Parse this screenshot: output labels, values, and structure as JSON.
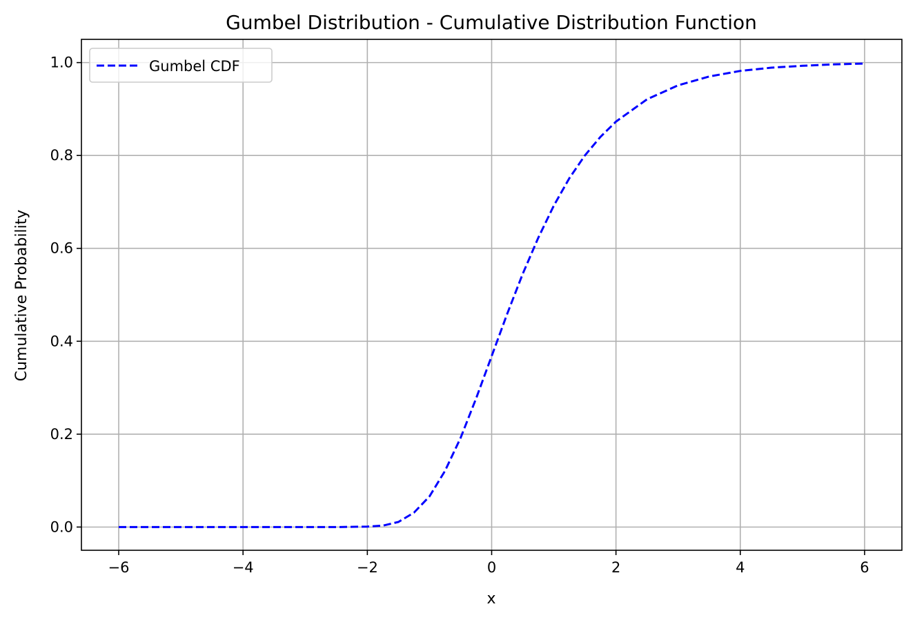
{
  "chart_data": {
    "type": "line",
    "title": "Gumbel Distribution - Cumulative Distribution Function",
    "xlabel": "x",
    "ylabel": "Cumulative Probability",
    "xlim": [
      -6.6,
      6.6
    ],
    "ylim": [
      -0.05,
      1.05
    ],
    "x_ticks": [
      -6,
      -4,
      -2,
      0,
      2,
      4,
      6
    ],
    "x_tick_labels": [
      "−6",
      "−4",
      "−2",
      "0",
      "2",
      "4",
      "6"
    ],
    "y_ticks": [
      0.0,
      0.2,
      0.4,
      0.6,
      0.8,
      1.0
    ],
    "y_tick_labels": [
      "0.0",
      "0.2",
      "0.4",
      "0.6",
      "0.8",
      "1.0"
    ],
    "grid": true,
    "legend": {
      "position": "top-left"
    },
    "series": [
      {
        "name": "Gumbel CDF",
        "color": "#0000ff",
        "linestyle": "dashed",
        "x": [
          -6,
          -5,
          -4,
          -3,
          -2.5,
          -2,
          -1.75,
          -1.5,
          -1.25,
          -1,
          -0.75,
          -0.5,
          -0.25,
          0,
          0.25,
          0.5,
          0.75,
          1,
          1.25,
          1.5,
          1.75,
          2,
          2.5,
          3,
          3.5,
          4,
          4.5,
          5,
          5.5,
          6
        ],
        "y": [
          0.0,
          0.0,
          0.0,
          0.0,
          0.0,
          0.001,
          0.003,
          0.011,
          0.031,
          0.066,
          0.121,
          0.192,
          0.277,
          0.368,
          0.459,
          0.545,
          0.623,
          0.692,
          0.751,
          0.8,
          0.84,
          0.873,
          0.921,
          0.951,
          0.97,
          0.982,
          0.989,
          0.993,
          0.996,
          0.998
        ]
      }
    ]
  }
}
